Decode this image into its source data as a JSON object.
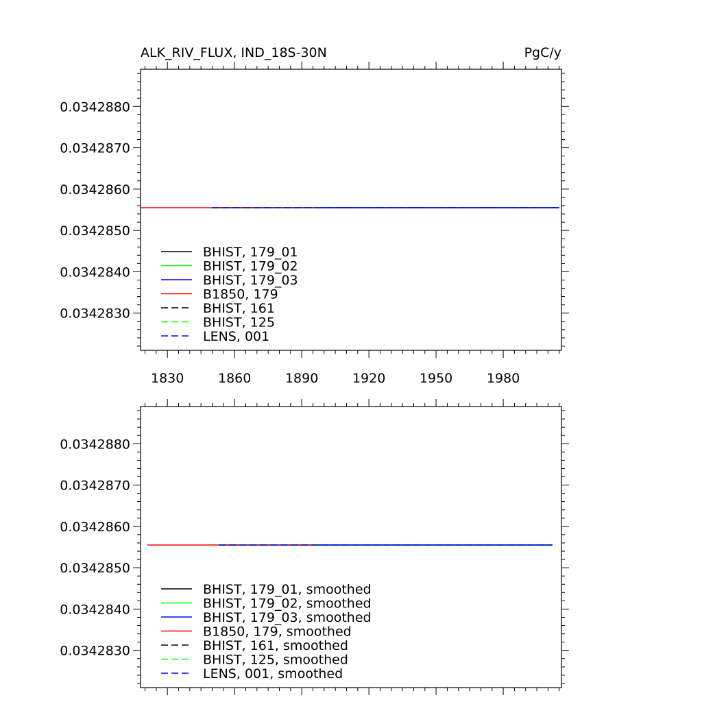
{
  "title_left": "ALK_RIV_FLUX, IND_18S-30N",
  "title_right": "PgC/y",
  "chart_data": [
    {
      "type": "line",
      "panel": "top",
      "title": "ALK_RIV_FLUX, IND_18S-30N",
      "units": "PgC/y",
      "xlim": [
        1818,
        2006
      ],
      "ylim": [
        0.0342821,
        0.0342889
      ],
      "xticks": [
        1830,
        1860,
        1890,
        1920,
        1950,
        1980
      ],
      "xtick_labels": [
        "1830",
        "1860",
        "1890",
        "1920",
        "1950",
        "1980"
      ],
      "yticks": [
        0.034283,
        0.034284,
        0.034285,
        0.034286,
        0.034287,
        0.034288
      ],
      "ytick_labels": [
        "0.0342830",
        "0.0342840",
        "0.0342850",
        "0.0342860",
        "0.0342870",
        "0.0342880"
      ],
      "legend_position": "bottom-left",
      "series": [
        {
          "name": "BHIST, 179_01",
          "color": "#000000",
          "dash": "solid",
          "x": [
            1850,
            2005
          ],
          "y": [
            0.03428555,
            0.03428555
          ]
        },
        {
          "name": "BHIST, 179_02",
          "color": "#00ff00",
          "dash": "solid",
          "x": [
            1850,
            2005
          ],
          "y": [
            0.03428555,
            0.03428555
          ]
        },
        {
          "name": "BHIST, 179_03",
          "color": "#0000ff",
          "dash": "solid",
          "x": [
            1850,
            2005
          ],
          "y": [
            0.03428555,
            0.03428555
          ]
        },
        {
          "name": "B1850, 179",
          "color": "#ff0000",
          "dash": "solid",
          "x": [
            1818,
            1898
          ],
          "y": [
            0.03428555,
            0.03428555
          ]
        },
        {
          "name": "BHIST, 161",
          "color": "#000000",
          "dash": "dashed",
          "x": [
            1850,
            2005
          ],
          "y": [
            0.03428555,
            0.03428555
          ]
        },
        {
          "name": "BHIST, 125",
          "color": "#00ff00",
          "dash": "dashed",
          "x": [
            1850,
            2005
          ],
          "y": [
            0.03428555,
            0.03428555
          ]
        },
        {
          "name": "LENS, 001",
          "color": "#0000ff",
          "dash": "dashed",
          "x": [
            1850,
            2005
          ],
          "y": [
            0.03428555,
            0.03428555
          ]
        }
      ]
    },
    {
      "type": "line",
      "panel": "bottom",
      "title": "",
      "units": "",
      "xlim": [
        1818,
        2006
      ],
      "ylim": [
        0.0342821,
        0.0342889
      ],
      "xticks": [
        1830,
        1860,
        1890,
        1920,
        1950,
        1980
      ],
      "xtick_labels": [],
      "yticks": [
        0.034283,
        0.034284,
        0.034285,
        0.034286,
        0.034287,
        0.034288
      ],
      "ytick_labels": [
        "0.0342830",
        "0.0342840",
        "0.0342850",
        "0.0342860",
        "0.0342870",
        "0.0342880"
      ],
      "legend_position": "bottom-left",
      "series": [
        {
          "name": "BHIST, 179_01, smoothed",
          "color": "#000000",
          "dash": "solid",
          "x": [
            1853,
            2002
          ],
          "y": [
            0.03428555,
            0.03428555
          ]
        },
        {
          "name": "BHIST, 179_02, smoothed",
          "color": "#00ff00",
          "dash": "solid",
          "x": [
            1853,
            2002
          ],
          "y": [
            0.03428555,
            0.03428555
          ]
        },
        {
          "name": "BHIST, 179_03, smoothed",
          "color": "#0000ff",
          "dash": "solid",
          "x": [
            1853,
            2002
          ],
          "y": [
            0.03428555,
            0.03428555
          ]
        },
        {
          "name": "B1850, 179, smoothed",
          "color": "#ff0000",
          "dash": "solid",
          "x": [
            1821,
            1895
          ],
          "y": [
            0.03428555,
            0.03428555
          ]
        },
        {
          "name": "BHIST, 161, smoothed",
          "color": "#000000",
          "dash": "dashed",
          "x": [
            1853,
            2002
          ],
          "y": [
            0.03428555,
            0.03428555
          ]
        },
        {
          "name": "BHIST, 125, smoothed",
          "color": "#00ff00",
          "dash": "dashed",
          "x": [
            1853,
            2002
          ],
          "y": [
            0.03428555,
            0.03428555
          ]
        },
        {
          "name": "LENS, 001, smoothed",
          "color": "#0000ff",
          "dash": "dashed",
          "x": [
            1853,
            2002
          ],
          "y": [
            0.03428555,
            0.03428555
          ]
        }
      ]
    }
  ]
}
